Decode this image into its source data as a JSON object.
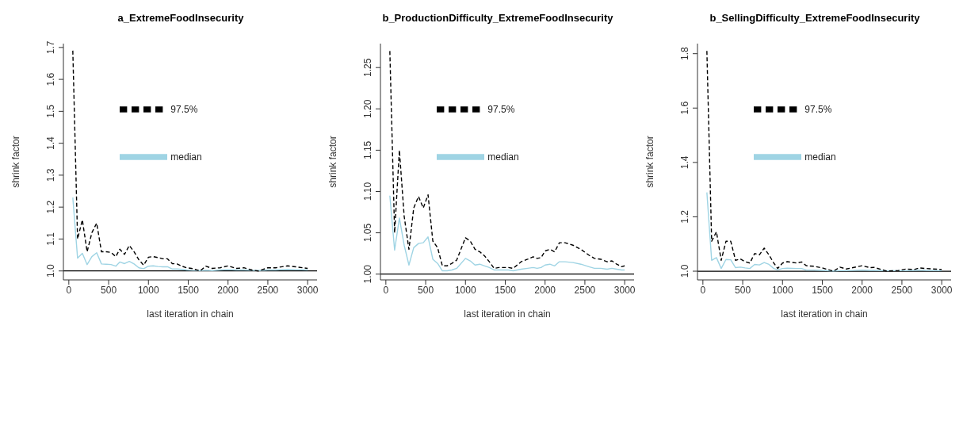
{
  "chart_data": [
    {
      "type": "line",
      "title": "a_ExtremeFoodInsecurity",
      "xlabel": "last iteration in chain",
      "ylabel": "shrink factor",
      "legend": "top",
      "x": [
        50,
        110,
        170,
        230,
        290,
        350,
        410,
        470,
        530,
        590,
        640,
        700,
        760,
        820,
        880,
        940,
        1000,
        1060,
        1120,
        1180,
        1240,
        1300,
        1360,
        1420,
        1480,
        1540,
        1650,
        1720,
        1800,
        1900,
        2000,
        2100,
        2200,
        2300,
        2380,
        2500,
        2600,
        2750,
        2850,
        3000
      ],
      "xlim": [
        -68,
        3118
      ],
      "xticks": [
        0,
        500,
        1000,
        1500,
        2000,
        2500,
        3000
      ],
      "ylim": [
        0.972,
        1.712
      ],
      "yticks": [
        {
          "value": 1,
          "label": "1.0"
        },
        {
          "value": 1.1,
          "label": "1.1"
        },
        {
          "value": 1.2,
          "label": "1.2"
        },
        {
          "value": 1.3,
          "label": "1.3"
        },
        {
          "value": 1.4,
          "label": "1.4"
        },
        {
          "value": 1.5,
          "label": "1.5"
        },
        {
          "value": 1.6,
          "label": "1.6"
        },
        {
          "value": 1.7,
          "label": "1.7"
        }
      ],
      "ref_lines": [
        {
          "axis": "y",
          "value": 1,
          "color": "#000000"
        }
      ],
      "series": [
        {
          "name": "median",
          "color": "#9fd4e4",
          "line_style": "solid",
          "values": [
            1.23,
            1.04,
            1.055,
            1.02,
            1.045,
            1.057,
            1.022,
            1.021,
            1.02,
            1.015,
            1.028,
            1.023,
            1.03,
            1.022,
            1.01,
            1.007,
            1.015,
            1.016,
            1.014,
            1.013,
            1.013,
            1.006,
            1.006,
            1.005,
            1.003,
            1.002,
            1.001,
            1.002,
            1.001,
            1.003,
            1.004,
            1.003,
            1.003,
            1.002,
            1.001,
            1.003,
            1.003,
            1.005,
            1.004,
            1.003
          ]
        },
        {
          "name": "97.5%",
          "color": "#000000",
          "line_style": "dashed",
          "values": [
            1.69,
            1.1,
            1.16,
            1.06,
            1.12,
            1.15,
            1.06,
            1.06,
            1.058,
            1.045,
            1.068,
            1.052,
            1.08,
            1.06,
            1.035,
            1.018,
            1.043,
            1.045,
            1.042,
            1.038,
            1.038,
            1.023,
            1.022,
            1.015,
            1.01,
            1.008,
            1.0,
            1.015,
            1.008,
            1.01,
            1.016,
            1.008,
            1.01,
            1.003,
            1.0,
            1.01,
            1.01,
            1.016,
            1.013,
            1.008
          ]
        }
      ]
    },
    {
      "type": "line",
      "title": "b_ProductionDifficulty_ExtremeFoodInsecurity",
      "xlabel": "last iteration in chain",
      "ylabel": "shrink factor",
      "legend": "top",
      "x": [
        50,
        110,
        170,
        230,
        290,
        350,
        410,
        470,
        530,
        590,
        650,
        710,
        770,
        830,
        890,
        1000,
        1060,
        1120,
        1180,
        1240,
        1300,
        1360,
        1420,
        1480,
        1540,
        1600,
        1700,
        1780,
        1850,
        1900,
        1950,
        2000,
        2060,
        2120,
        2180,
        2250,
        2350,
        2450,
        2550,
        2620,
        2700,
        2780,
        2840,
        2900,
        2960,
        3000
      ],
      "xlim": [
        -68,
        3118
      ],
      "xticks": [
        0,
        500,
        1000,
        1500,
        2000,
        2500,
        3000
      ],
      "ylim": [
        0.993,
        1.279
      ],
      "yticks": [
        {
          "value": 1,
          "label": "1.00"
        },
        {
          "value": 1.05,
          "label": "1.05"
        },
        {
          "value": 1.1,
          "label": "1.10"
        },
        {
          "value": 1.15,
          "label": "1.15"
        },
        {
          "value": 1.2,
          "label": "1.20"
        },
        {
          "value": 1.25,
          "label": "1.25"
        }
      ],
      "ref_lines": [
        {
          "axis": "y",
          "value": 1,
          "color": "#000000"
        }
      ],
      "series": [
        {
          "name": "median",
          "color": "#9fd4e4",
          "line_style": "solid",
          "values": [
            1.095,
            1.029,
            1.068,
            1.035,
            1.011,
            1.032,
            1.037,
            1.038,
            1.045,
            1.018,
            1.013,
            1.004,
            1.004,
            1.005,
            1.007,
            1.019,
            1.016,
            1.011,
            1.012,
            1.01,
            1.008,
            1.005,
            1.005,
            1.005,
            1.005,
            1.004,
            1.006,
            1.007,
            1.008,
            1.007,
            1.008,
            1.011,
            1.012,
            1.01,
            1.015,
            1.015,
            1.014,
            1.012,
            1.009,
            1.007,
            1.007,
            1.006,
            1.007,
            1.006,
            1.005,
            1.005
          ]
        },
        {
          "name": "97.5%",
          "color": "#000000",
          "line_style": "dashed",
          "values": [
            1.27,
            1.05,
            1.15,
            1.07,
            1.03,
            1.08,
            1.094,
            1.08,
            1.096,
            1.04,
            1.032,
            1.01,
            1.01,
            1.013,
            1.017,
            1.044,
            1.04,
            1.03,
            1.027,
            1.022,
            1.015,
            1.007,
            1.008,
            1.008,
            1.008,
            1.007,
            1.015,
            1.018,
            1.021,
            1.019,
            1.02,
            1.028,
            1.03,
            1.027,
            1.038,
            1.038,
            1.035,
            1.03,
            1.023,
            1.019,
            1.018,
            1.015,
            1.016,
            1.012,
            1.009,
            1.01
          ]
        }
      ]
    },
    {
      "type": "line",
      "title": "b_SellingDifficulty_ExtremeFoodInsecurity",
      "xlabel": "last iteration in chain",
      "ylabel": "shrink factor",
      "legend": "top",
      "x": [
        50,
        110,
        170,
        230,
        290,
        350,
        410,
        470,
        530,
        590,
        650,
        710,
        770,
        830,
        890,
        940,
        1000,
        1060,
        1180,
        1240,
        1300,
        1400,
        1500,
        1640,
        1720,
        1800,
        2000,
        2100,
        2150,
        2300,
        2450,
        2550,
        2650,
        2720,
        2800,
        3000
      ],
      "xlim": [
        -68,
        3118
      ],
      "xticks": [
        0,
        500,
        1000,
        1500,
        2000,
        2500,
        3000
      ],
      "ylim": [
        0.968,
        1.837
      ],
      "yticks": [
        {
          "value": 1,
          "label": "1.0"
        },
        {
          "value": 1.2,
          "label": "1.2"
        },
        {
          "value": 1.4,
          "label": "1.4"
        },
        {
          "value": 1.6,
          "label": "1.6"
        },
        {
          "value": 1.8,
          "label": "1.8"
        }
      ],
      "ref_lines": [
        {
          "axis": "y",
          "value": 1,
          "color": "#000000"
        }
      ],
      "series": [
        {
          "name": "median",
          "color": "#9fd4e4",
          "line_style": "solid",
          "values": [
            1.29,
            1.04,
            1.05,
            1.01,
            1.043,
            1.042,
            1.013,
            1.015,
            1.012,
            1.01,
            1.025,
            1.023,
            1.032,
            1.025,
            1.01,
            1.005,
            1.01,
            1.011,
            1.01,
            1.01,
            1.004,
            1.004,
            1.003,
            1.001,
            1.002,
            1.002,
            1.004,
            1.003,
            1.003,
            1.002,
            1.002,
            1.002,
            1.003,
            1.004,
            1.003,
            1.002
          ]
        },
        {
          "name": "97.5%",
          "color": "#000000",
          "line_style": "dashed",
          "values": [
            1.81,
            1.11,
            1.145,
            1.04,
            1.11,
            1.11,
            1.04,
            1.045,
            1.035,
            1.03,
            1.065,
            1.06,
            1.085,
            1.06,
            1.03,
            1.01,
            1.03,
            1.035,
            1.03,
            1.034,
            1.02,
            1.018,
            1.012,
            1.0,
            1.015,
            1.008,
            1.02,
            1.013,
            1.014,
            1.001,
            1.002,
            1.008,
            1.006,
            1.012,
            1.01,
            1.006
          ]
        }
      ]
    }
  ]
}
